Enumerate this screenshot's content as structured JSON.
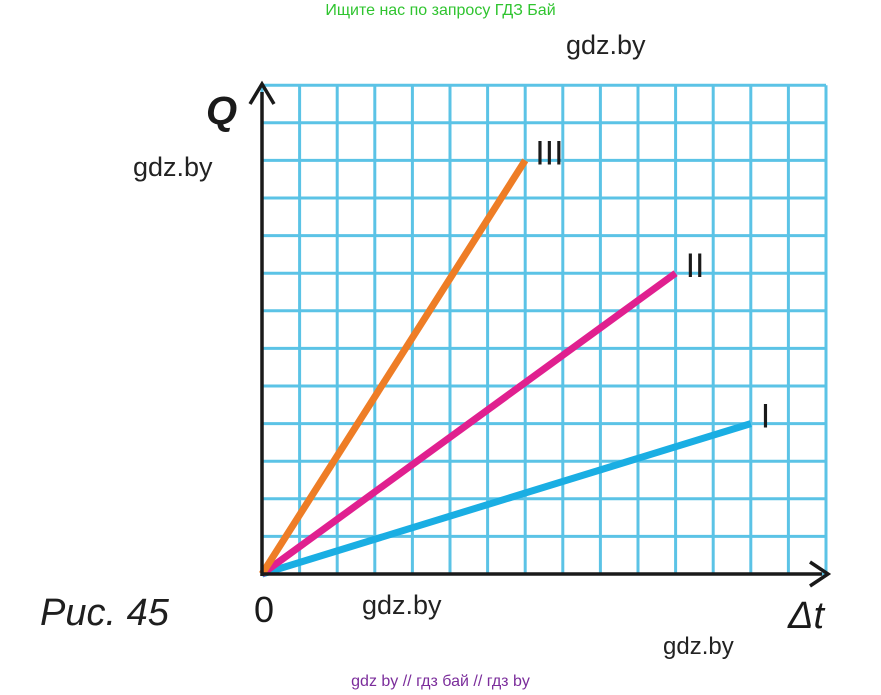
{
  "header": {
    "banner": "Ищите нас по запросу ГДЗ Бай"
  },
  "watermarks": [
    "gdz.by",
    "gdz.by",
    "gdz.by",
    "gdz.by"
  ],
  "footer": {
    "banner": "gdz by  //  гдз бай  //  гдз by"
  },
  "figure": {
    "caption": "Рис. 45"
  },
  "chart_data": {
    "type": "line",
    "xlabel": "Δt",
    "ylabel": "Q",
    "origin_label": "0",
    "x_grid_cells": 15,
    "y_grid_cells": 13,
    "grid": true,
    "grid_color": "#5bc3e6",
    "axis_color": "#1a1a1a",
    "series": [
      {
        "name": "I",
        "color": "#1aaee3",
        "x": [
          0,
          13
        ],
        "y": [
          0,
          4
        ]
      },
      {
        "name": "II",
        "color": "#e0208f",
        "x": [
          0,
          11
        ],
        "y": [
          0,
          8
        ]
      },
      {
        "name": "III",
        "color": "#ee7d26",
        "x": [
          0,
          7
        ],
        "y": [
          0,
          11
        ]
      }
    ]
  }
}
